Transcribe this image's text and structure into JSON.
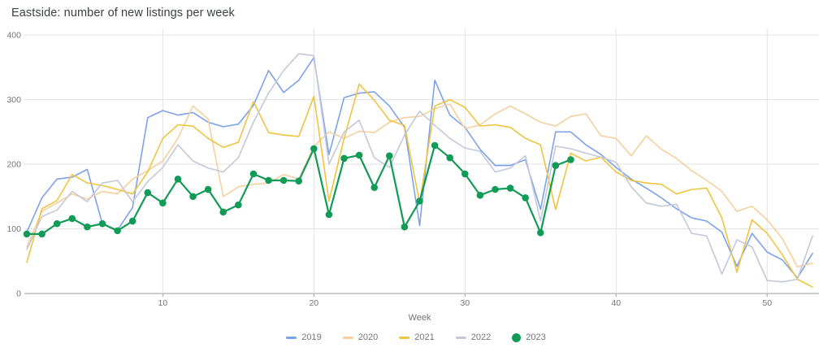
{
  "title": "Eastside: number of new listings per week",
  "x_axis_title": "Week",
  "colors": {
    "grid": "#e3e3e3",
    "axis_line": "#9e9e9e",
    "tick_text": "#757575",
    "title_text": "#3c4043"
  },
  "chart_data": {
    "type": "line",
    "title": "Eastside: number of new listings per week",
    "xlabel": "Week",
    "ylabel": "",
    "x_range": [
      1,
      53
    ],
    "x_ticks": [
      10,
      20,
      30,
      40,
      50
    ],
    "ylim": [
      0,
      400
    ],
    "y_ticks": [
      0,
      100,
      200,
      300,
      400
    ],
    "grid": true,
    "legend_position": "bottom",
    "series": [
      {
        "name": "2019",
        "color": "#7CA3E8",
        "style": "line",
        "start_week": 1,
        "values": [
          95,
          148,
          177,
          180,
          192,
          108,
          98,
          133,
          272,
          283,
          276,
          280,
          265,
          258,
          262,
          291,
          345,
          311,
          330,
          365,
          215,
          303,
          310,
          312,
          290,
          257,
          105,
          330,
          276,
          257,
          223,
          198,
          198,
          207,
          130,
          250,
          250,
          230,
          215,
          195,
          177,
          163,
          148,
          131,
          117,
          112,
          95,
          42,
          93,
          64,
          52,
          24,
          62
        ]
      },
      {
        "name": "2020",
        "color": "#F7CF9E",
        "style": "line",
        "start_week": 1,
        "values": [
          72,
          127,
          140,
          154,
          146,
          158,
          154,
          177,
          190,
          205,
          240,
          290,
          270,
          150,
          165,
          169,
          171,
          184,
          177,
          228,
          250,
          240,
          251,
          249,
          265,
          272,
          274,
          286,
          293,
          255,
          261,
          278,
          290,
          278,
          265,
          259,
          274,
          278,
          244,
          240,
          213,
          244,
          223,
          209,
          190,
          175,
          158,
          127,
          135,
          114,
          85,
          41,
          47
        ]
      },
      {
        "name": "2021",
        "color": "#EFC43F",
        "style": "line",
        "start_week": 1,
        "values": [
          48,
          131,
          144,
          184,
          171,
          167,
          161,
          154,
          188,
          240,
          261,
          259,
          240,
          226,
          234,
          297,
          249,
          245,
          243,
          305,
          143,
          240,
          324,
          299,
          268,
          260,
          140,
          290,
          300,
          288,
          259,
          261,
          257,
          240,
          230,
          130,
          217,
          205,
          211,
          188,
          175,
          171,
          169,
          154,
          161,
          163,
          117,
          33,
          114,
          93,
          60,
          22,
          10
        ]
      },
      {
        "name": "2022",
        "color": "#C3C8DB",
        "style": "line",
        "start_week": 1,
        "values": [
          68,
          119,
          129,
          158,
          142,
          171,
          175,
          142,
          173,
          195,
          230,
          205,
          194,
          188,
          210,
          265,
          310,
          345,
          371,
          368,
          200,
          250,
          268,
          210,
          195,
          245,
          282,
          260,
          240,
          225,
          220,
          188,
          194,
          213,
          112,
          228,
          224,
          217,
          211,
          203,
          165,
          140,
          135,
          138,
          93,
          89,
          30,
          83,
          72,
          20,
          18,
          22,
          89
        ]
      },
      {
        "name": "2023",
        "color": "#119B57",
        "style": "line+markers",
        "start_week": 1,
        "values": [
          92,
          92,
          108,
          116,
          103,
          108,
          97,
          112,
          156,
          140,
          177,
          150,
          161,
          126,
          137,
          185,
          175,
          175,
          174,
          224,
          122,
          209,
          214,
          164,
          213,
          103,
          143,
          229,
          210,
          185,
          152,
          161,
          163,
          148,
          94,
          198,
          207
        ]
      }
    ]
  }
}
